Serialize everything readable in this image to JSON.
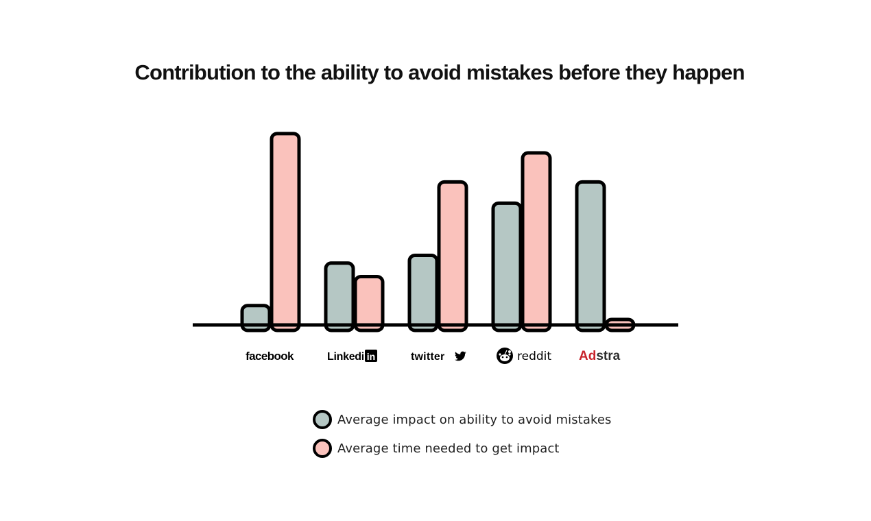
{
  "chart_data": {
    "type": "bar",
    "title": "Contribution to the ability to avoid mistakes before they happen",
    "categories": [
      "facebook",
      "Linkedin",
      "twitter",
      "reddit",
      "Adstra"
    ],
    "series": [
      {
        "name": "Average impact on ability to avoid mistakes",
        "color": "#b5c7c4",
        "values": [
          10,
          32,
          36,
          63,
          74
        ]
      },
      {
        "name": "Average time needed to get impact",
        "color": "#fac2bc",
        "values": [
          99,
          25,
          74,
          89,
          2
        ]
      }
    ],
    "ylim": [
      0,
      100
    ],
    "xlabel": "",
    "ylabel": "",
    "grid": false,
    "legend_position": "bottom"
  },
  "brand_colors": {
    "adstra_red": "#c8232b",
    "adstra_dark": "#2d2d2d",
    "bar_outline": "#000000"
  },
  "icons": {
    "linkedin": "linkedin-in-box-icon",
    "twitter": "twitter-bird-icon",
    "reddit": "reddit-alien-icon"
  },
  "logos": {
    "linkedin_suffix": "in",
    "adstra_ad": "Ad",
    "adstra_rest": "stra"
  }
}
